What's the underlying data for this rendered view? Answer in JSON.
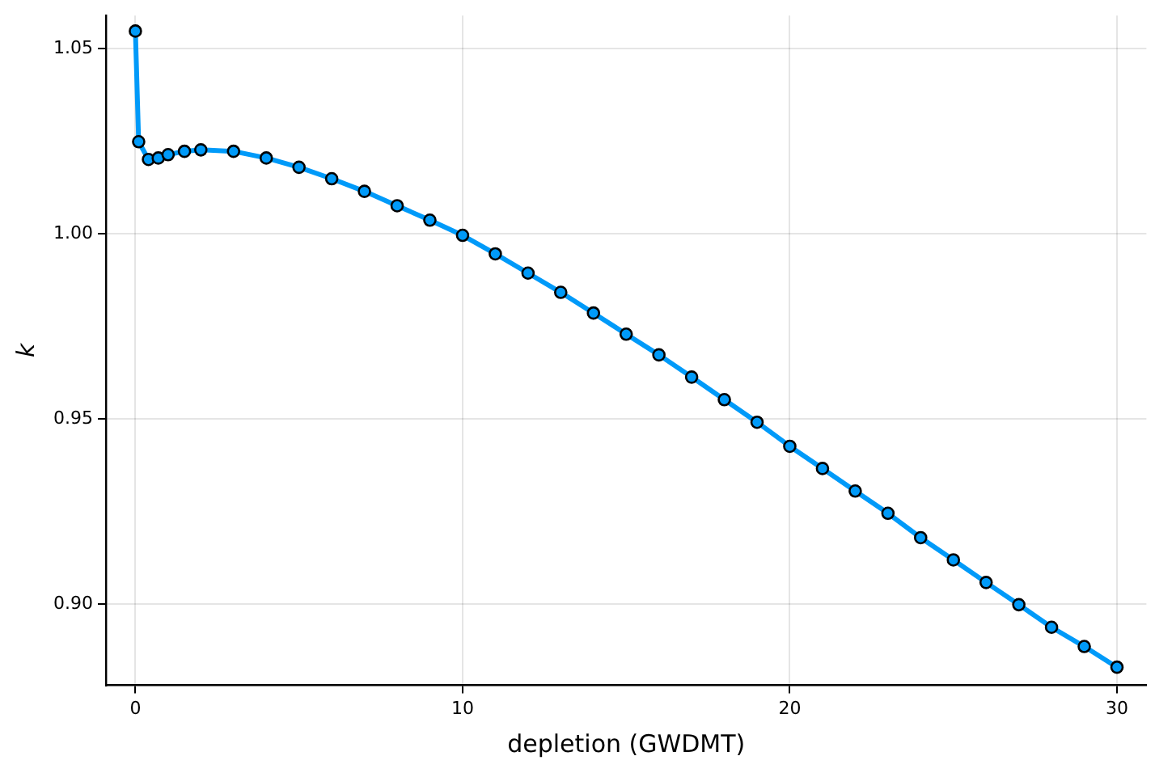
{
  "chart_data": {
    "type": "line",
    "xlabel": "depletion (GWDMT)",
    "ylabel": "k",
    "x": [
      0,
      0.1,
      0.4,
      0.7,
      1,
      1.5,
      2,
      3,
      4,
      5,
      6,
      7,
      8,
      9,
      10,
      11,
      12,
      13,
      14,
      15,
      16,
      17,
      18,
      19,
      20,
      21,
      22,
      23,
      24,
      25,
      26,
      27,
      28,
      29,
      30
    ],
    "series": [
      {
        "color": "#009af9",
        "values": [
          1.0548,
          1.0249,
          1.0201,
          1.0205,
          1.0214,
          1.0223,
          1.0227,
          1.0223,
          1.0205,
          1.018,
          1.0149,
          1.0115,
          1.0076,
          1.0037,
          0.9996,
          0.9946,
          0.9894,
          0.9842,
          0.9786,
          0.9729,
          0.9673,
          0.9613,
          0.9552,
          0.9491,
          0.9426,
          0.9366,
          0.9305,
          0.9245,
          0.9179,
          0.9119,
          0.9058,
          0.8998,
          0.8937,
          0.8885,
          0.8829
        ]
      }
    ],
    "xlim": [
      -0.9,
      30.9
    ],
    "ylim": [
      0.878,
      1.059
    ],
    "xticks": [
      0,
      10,
      20,
      30
    ],
    "yticks": [
      {
        "value": 0.9,
        "label": "0.90"
      },
      0.95,
      {
        "value": 1,
        "label": "1.00"
      },
      1.05
    ],
    "grid": true,
    "legend": false,
    "marker": "circle",
    "line_style": "solid"
  }
}
